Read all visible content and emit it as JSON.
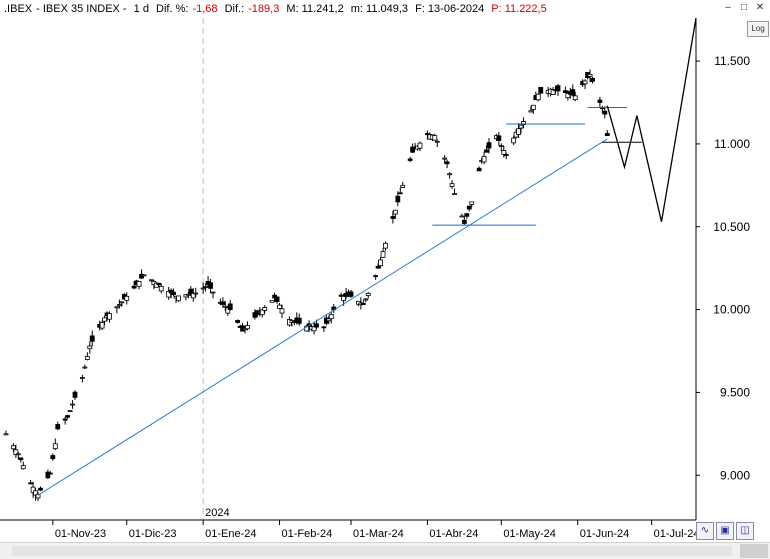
{
  "header": {
    "symbol": ".IBEX",
    "name": "- IBEX 35 INDEX -",
    "period": "1 d",
    "dif_pct_label": "Dif. %:",
    "dif_pct_value": "-1,68",
    "dif_label": "Dif.:",
    "dif_value": "-189,3",
    "max_text": "M: 11.241,2",
    "min_text": "m: 11.049,3",
    "date_text": "F: 13-06-2024",
    "price_text": "P: 11.222,5"
  },
  "log_label": "Log",
  "year_marker": "2024",
  "colors": {
    "candle": "#000000",
    "trendline": "#2a7fd4",
    "support": "#1a6fc4",
    "projection": "#000000",
    "negative_text": "#d40000",
    "grid": "#d8d8d8"
  },
  "chart_data": {
    "type": "candlestick",
    "title": "IBEX 35 INDEX",
    "period": "1 d",
    "y_ticks": [
      "11.500",
      "11.000",
      "10.500",
      "10.000",
      "9.500",
      "9.000"
    ],
    "y_tick_values": [
      11500,
      11000,
      10500,
      10000,
      9500,
      9000
    ],
    "y_range": [
      8730,
      11760
    ],
    "x_ticks": [
      "01-Nov-23",
      "01-Dic-23",
      "01-Ene-24",
      "01-Feb-24",
      "01-Mar-24",
      "01-Abr-24",
      "01-May-24",
      "01-Jun-24",
      "01-Jul-24"
    ],
    "x_range": [
      "2023-10-13",
      "2024-07-19"
    ],
    "close_path": [
      [
        "2023-10-13",
        9250
      ],
      [
        "2023-10-18",
        9130
      ],
      [
        "2023-10-23",
        8950
      ],
      [
        "2023-10-26",
        8885
      ],
      [
        "2023-10-31",
        9010
      ],
      [
        "2023-11-03",
        9280
      ],
      [
        "2023-11-07",
        9350
      ],
      [
        "2023-11-13",
        9590
      ],
      [
        "2023-11-16",
        9780
      ],
      [
        "2023-11-22",
        9950
      ],
      [
        "2023-11-28",
        10030
      ],
      [
        "2023-12-04",
        10130
      ],
      [
        "2023-12-08",
        10210
      ],
      [
        "2023-12-14",
        10150
      ],
      [
        "2023-12-21",
        10080
      ],
      [
        "2023-12-29",
        10100
      ],
      [
        "2024-01-03",
        10150
      ],
      [
        "2024-01-08",
        10040
      ],
      [
        "2024-01-12",
        10000
      ],
      [
        "2024-01-17",
        9870
      ],
      [
        "2024-01-23",
        9970
      ],
      [
        "2024-01-30",
        10070
      ],
      [
        "2024-02-05",
        9940
      ],
      [
        "2024-02-12",
        9900
      ],
      [
        "2024-02-19",
        9890
      ],
      [
        "2024-02-26",
        10080
      ],
      [
        "2024-03-01",
        10080
      ],
      [
        "2024-03-06",
        10030
      ],
      [
        "2024-03-11",
        10200
      ],
      [
        "2024-03-15",
        10400
      ],
      [
        "2024-03-20",
        10650
      ],
      [
        "2024-03-26",
        10950
      ],
      [
        "2024-04-01",
        11060
      ],
      [
        "2024-04-04",
        11050
      ],
      [
        "2024-04-09",
        10880
      ],
      [
        "2024-04-12",
        10700
      ],
      [
        "2024-04-16",
        10520
      ],
      [
        "2024-04-19",
        10650
      ],
      [
        "2024-04-23",
        10900
      ],
      [
        "2024-04-29",
        11050
      ],
      [
        "2024-05-03",
        10930
      ],
      [
        "2024-05-07",
        11070
      ],
      [
        "2024-05-13",
        11200
      ],
      [
        "2024-05-16",
        11300
      ],
      [
        "2024-05-21",
        11330
      ],
      [
        "2024-05-27",
        11310
      ],
      [
        "2024-05-31",
        11290
      ],
      [
        "2024-06-04",
        11380
      ],
      [
        "2024-06-06",
        11420
      ],
      [
        "2024-06-10",
        11250
      ],
      [
        "2024-06-12",
        11180
      ],
      [
        "2024-06-13",
        11050
      ]
    ],
    "trendline": [
      [
        "2023-10-26",
        8880
      ],
      [
        "2024-06-13",
        11030
      ]
    ],
    "support_lines": [
      {
        "x": [
          "2024-04-03",
          "2024-05-15"
        ],
        "y": 10510
      },
      {
        "x": [
          "2024-05-03",
          "2024-06-04"
        ],
        "y": 11120
      },
      {
        "x": [
          "2024-06-05",
          "2024-06-21"
        ],
        "y": 11220
      },
      {
        "x": [
          "2024-06-11",
          "2024-06-27"
        ],
        "y": 11010
      }
    ],
    "projection": [
      [
        "2024-06-13",
        11230
      ],
      [
        "2024-06-20",
        10860
      ],
      [
        "2024-06-25",
        11170
      ],
      [
        "2024-07-05",
        10530
      ],
      [
        "2024-07-19",
        11760
      ]
    ]
  }
}
